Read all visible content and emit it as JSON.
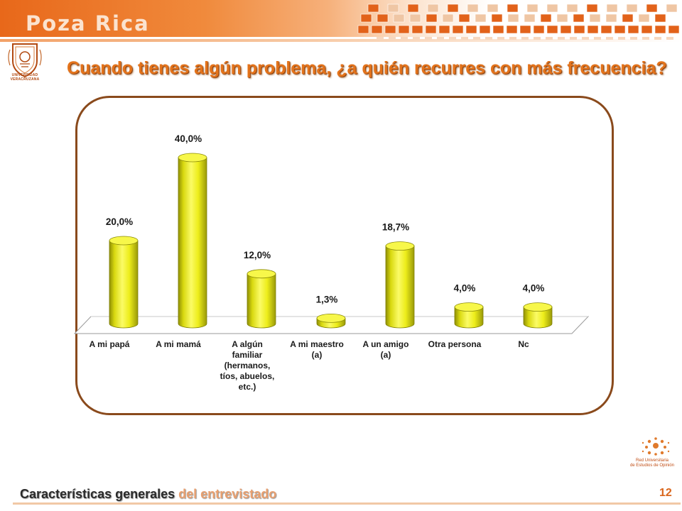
{
  "header": {
    "brand": "Poza Rica"
  },
  "logo_left": {
    "caption": "UNIVERSIDAD VERACRUZANA"
  },
  "slide": {
    "title": "Cuando tienes algún problema, ¿a quién recurres con más frecuencia?"
  },
  "logo_right": {
    "line1": "Red Universitaria",
    "line2": "de Estudios de Opinión"
  },
  "footer": {
    "title_main": "Características generales",
    "title_rest": "del entrevistado",
    "page_number": "12"
  },
  "colors": {
    "accent": "#e3731b",
    "bar": "#f2f213",
    "frame": "#8a4a1c"
  },
  "chart_data": {
    "type": "bar",
    "title": "",
    "xlabel": "",
    "ylabel": "",
    "categories": [
      "A mi papá",
      "A mi mamá",
      "A algún familiar (hermanos, tíos, abuelos, etc.)",
      "A mi maestro (a)",
      "A un amigo (a)",
      "Otra persona",
      "Nc"
    ],
    "category_lines": [
      [
        "A mi papá"
      ],
      [
        "A mi mamá"
      ],
      [
        "A algún",
        "familiar",
        "(hermanos,",
        "tíos, abuelos,",
        "etc.)"
      ],
      [
        "A mi maestro",
        "(a)"
      ],
      [
        "A un amigo",
        "(a)"
      ],
      [
        "Otra persona"
      ],
      [
        "Nc"
      ]
    ],
    "values": [
      20.0,
      40.0,
      12.0,
      1.3,
      18.7,
      4.0,
      4.0
    ],
    "value_labels": [
      "20,0%",
      "40,0%",
      "12,0%",
      "1,3%",
      "18,7%",
      "4,0%",
      "4,0%"
    ],
    "ylim": [
      0,
      40
    ],
    "grid": false,
    "legend": "none"
  }
}
